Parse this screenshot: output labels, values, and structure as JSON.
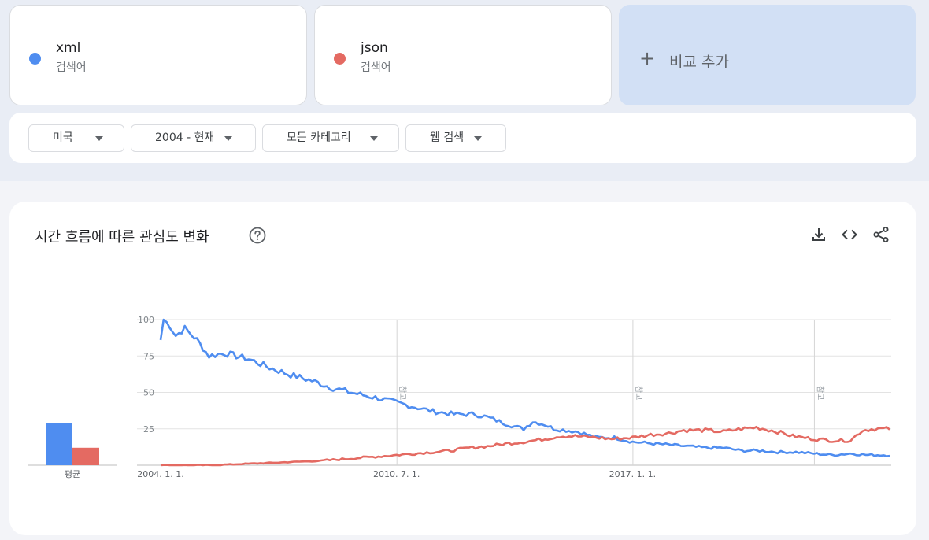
{
  "terms": [
    {
      "name": "xml",
      "kind": "검색어",
      "color": "#4f8df0"
    },
    {
      "name": "json",
      "kind": "검색어",
      "color": "#e46a62"
    }
  ],
  "add_compare": {
    "icon": "plus-icon",
    "label": "비교 추가"
  },
  "filters": {
    "region": "미국",
    "period": "2004 - 현재",
    "category": "모든 카테고리",
    "search_type": "웹 검색"
  },
  "panel": {
    "title": "시간 흐름에 따른 관심도 변화",
    "icons": [
      "help-icon",
      "download-icon",
      "embed-icon",
      "share-icon"
    ]
  },
  "chart_data": {
    "type": "line",
    "ylim": [
      0,
      100
    ],
    "yticks": [
      "100",
      "75",
      "50",
      "25"
    ],
    "xtick_labels": [
      "2004. 1. 1.",
      "2010. 7. 1.",
      "2017. 1. 1."
    ],
    "note_label": "참고",
    "average_label": "평균",
    "average": {
      "xml": 29,
      "json": 12
    },
    "x_start": "2004-01",
    "x_end": "2024-02",
    "series": [
      {
        "name": "xml",
        "color": "#4f8df0",
        "anchors": [
          [
            "2004-01",
            86
          ],
          [
            "2004-02",
            100
          ],
          [
            "2004-04",
            96
          ],
          [
            "2004-06",
            89
          ],
          [
            "2004-09",
            94
          ],
          [
            "2005-01",
            86
          ],
          [
            "2005-05",
            75
          ],
          [
            "2005-10",
            77
          ],
          [
            "2006-06",
            73
          ],
          [
            "2007-01",
            67
          ],
          [
            "2007-08",
            62
          ],
          [
            "2008-03",
            58
          ],
          [
            "2008-10",
            53
          ],
          [
            "2009-06",
            49
          ],
          [
            "2010-01",
            46
          ],
          [
            "2010-07",
            43
          ],
          [
            "2011-01",
            40
          ],
          [
            "2011-07",
            37
          ],
          [
            "2012-02",
            35
          ],
          [
            "2012-09",
            35
          ],
          [
            "2013-01",
            33
          ],
          [
            "2013-05",
            30
          ],
          [
            "2013-11",
            26
          ],
          [
            "2014-01",
            25
          ],
          [
            "2014-04",
            30
          ],
          [
            "2014-08",
            28
          ],
          [
            "2014-11",
            25
          ],
          [
            "2015-03",
            24
          ],
          [
            "2015-07",
            23
          ],
          [
            "2016-01",
            19
          ],
          [
            "2016-07",
            19
          ],
          [
            "2017-01",
            16
          ],
          [
            "2017-07",
            15
          ],
          [
            "2018-01",
            14
          ],
          [
            "2018-07",
            13
          ],
          [
            "2019-01",
            12
          ],
          [
            "2019-07",
            12
          ],
          [
            "2020-01",
            10
          ],
          [
            "2020-07",
            10
          ],
          [
            "2021-01",
            9
          ],
          [
            "2021-07",
            9
          ],
          [
            "2022-01",
            8
          ],
          [
            "2022-07",
            7
          ],
          [
            "2023-01",
            8
          ],
          [
            "2023-07",
            7
          ],
          [
            "2024-02",
            7
          ]
        ]
      },
      {
        "name": "json",
        "color": "#e46a62",
        "anchors": [
          [
            "2004-01",
            0
          ],
          [
            "2005-06",
            0
          ],
          [
            "2006-06",
            1
          ],
          [
            "2007-06",
            2
          ],
          [
            "2008-06",
            3
          ],
          [
            "2009-06",
            5
          ],
          [
            "2010-01",
            6
          ],
          [
            "2010-07",
            7
          ],
          [
            "2011-01",
            8
          ],
          [
            "2011-07",
            9
          ],
          [
            "2012-01",
            10
          ],
          [
            "2012-07",
            12
          ],
          [
            "2013-01",
            13
          ],
          [
            "2013-08",
            15
          ],
          [
            "2014-01",
            16
          ],
          [
            "2014-08",
            18
          ],
          [
            "2015-01",
            20
          ],
          [
            "2015-06",
            20
          ],
          [
            "2016-01",
            19
          ],
          [
            "2016-06",
            18
          ],
          [
            "2017-01",
            19
          ],
          [
            "2017-07",
            21
          ],
          [
            "2018-01",
            22
          ],
          [
            "2018-06",
            24
          ],
          [
            "2019-01",
            24
          ],
          [
            "2019-07",
            23
          ],
          [
            "2020-01",
            25
          ],
          [
            "2020-06",
            26
          ],
          [
            "2021-01",
            23
          ],
          [
            "2021-06",
            20
          ],
          [
            "2022-01",
            18
          ],
          [
            "2022-07",
            17
          ],
          [
            "2023-01",
            17
          ],
          [
            "2023-05",
            24
          ],
          [
            "2023-09",
            25
          ],
          [
            "2024-02",
            25
          ]
        ]
      }
    ]
  }
}
